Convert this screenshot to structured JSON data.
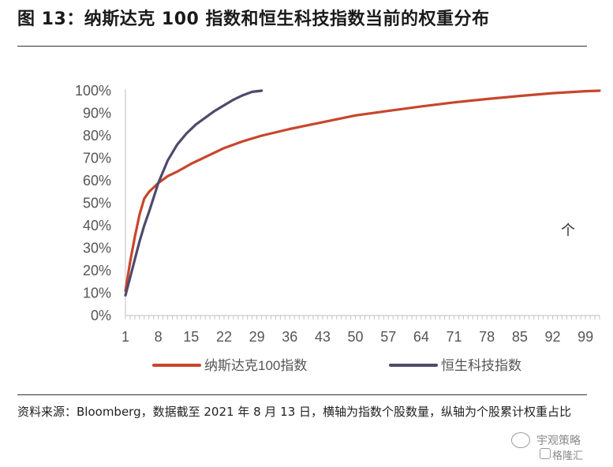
{
  "header": {
    "title": "图 13：纳斯达克 100 指数和恒生科技指数当前的权重分布"
  },
  "footnote": {
    "text": "资料来源：Bloomberg，数据截至 2021 年 8 月 13 日，横轴为指数个股数量，纵轴为个股累计权重占比"
  },
  "watermark": {
    "line1": "宇观策略",
    "line2": "格隆汇"
  },
  "chart_data": {
    "type": "line",
    "title": "",
    "xlabel": "",
    "ylabel": "",
    "annotation": "个",
    "x_ticks": [
      1,
      8,
      15,
      22,
      29,
      36,
      43,
      50,
      57,
      64,
      71,
      78,
      85,
      92,
      99
    ],
    "y_ticks": [
      "0%",
      "10%",
      "20%",
      "30%",
      "40%",
      "50%",
      "60%",
      "70%",
      "80%",
      "90%",
      "100%"
    ],
    "xlim": [
      1,
      102
    ],
    "ylim": [
      0,
      100
    ],
    "legend_position": "bottom",
    "series": [
      {
        "name": "纳斯达克100指数",
        "color": "#C8462B",
        "x": [
          1,
          2,
          3,
          4,
          5,
          6,
          7,
          8,
          10,
          12,
          15,
          18,
          22,
          26,
          30,
          36,
          43,
          50,
          57,
          64,
          71,
          78,
          85,
          92,
          99,
          102
        ],
        "y": [
          11,
          24,
          35,
          45,
          52,
          55,
          57,
          59,
          62,
          64,
          67.5,
          70.5,
          74.5,
          77.5,
          80,
          83,
          86,
          89,
          91,
          93,
          94.8,
          96.3,
          97.7,
          98.9,
          99.8,
          100
        ]
      },
      {
        "name": "恒生科技指数",
        "color": "#4E4A6B",
        "x": [
          1,
          2,
          3,
          4,
          5,
          6,
          8,
          10,
          12,
          14,
          16,
          18,
          20,
          22,
          24,
          26,
          28,
          30
        ],
        "y": [
          9,
          17,
          25,
          33,
          40,
          46,
          59,
          69,
          76,
          81,
          85,
          88,
          91,
          93.5,
          96,
          98,
          99.5,
          100
        ]
      }
    ]
  }
}
